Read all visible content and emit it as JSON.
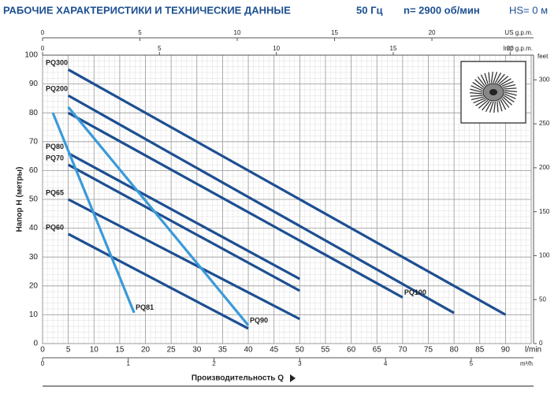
{
  "chart_data": {
    "type": "line",
    "title": "РАБОЧИЕ ХАРАКТЕРИСТИКИ И ТЕХНИЧЕСКИЕ ДАННЫЕ",
    "frequency": "50 Гц",
    "speed": "n= 2900 об/мин",
    "suction_head": "HS= 0 м",
    "x_label": "Производительность Q",
    "y_label": "Напор H (метры)",
    "x_unit": "l/min",
    "xlim": [
      0,
      95
    ],
    "xticks": [
      0,
      5,
      10,
      15,
      20,
      25,
      30,
      35,
      40,
      45,
      50,
      55,
      60,
      65,
      70,
      75,
      80,
      85,
      90
    ],
    "ylim": [
      0,
      100
    ],
    "yticks": [
      0,
      10,
      20,
      30,
      40,
      50,
      60,
      70,
      80,
      90,
      100
    ],
    "grid": true,
    "us_gpm_axis": {
      "label": "US g.p.m.",
      "lim": [
        0,
        25.1
      ],
      "ticks": [
        0,
        5,
        10,
        15,
        20
      ]
    },
    "imp_gpm_axis": {
      "label": "Imp g.p.m.",
      "lim": [
        0,
        20.9
      ],
      "ticks": [
        0,
        5,
        10,
        15,
        20
      ]
    },
    "m3h_axis": {
      "label": "m³/h",
      "lim": [
        0,
        5.7
      ],
      "ticks": [
        0,
        1,
        2,
        3,
        4,
        5
      ]
    },
    "feet_axis": {
      "label": "feet",
      "lim": [
        0,
        328.1
      ],
      "ticks": [
        0,
        50,
        100,
        150,
        200,
        250,
        300
      ]
    },
    "series": [
      {
        "name": "PQ300",
        "color": "#1d4f91",
        "x": [
          5,
          90
        ],
        "values": [
          95,
          10
        ]
      },
      {
        "name": "PQ200",
        "color": "#1d4f91",
        "x": [
          5,
          80
        ],
        "values": [
          86,
          10.6
        ]
      },
      {
        "name": "PQ100",
        "color": "#1d4f91",
        "x": [
          5,
          70
        ],
        "values": [
          80,
          16
        ]
      },
      {
        "name": "PQ80",
        "color": "#1d4f91",
        "x": [
          5,
          50
        ],
        "values": [
          66,
          22.4
        ]
      },
      {
        "name": "PQ70",
        "color": "#1d4f91",
        "x": [
          5,
          50
        ],
        "values": [
          62,
          18.3
        ]
      },
      {
        "name": "PQ65",
        "color": "#1d4f91",
        "x": [
          5,
          50
        ],
        "values": [
          50,
          8.5
        ]
      },
      {
        "name": "PQ60",
        "color": "#1d4f91",
        "x": [
          5,
          40
        ],
        "values": [
          38,
          5.2
        ]
      },
      {
        "name": "PQ81",
        "color": "#3a9ad9",
        "x": [
          2,
          17.8
        ],
        "values": [
          80,
          10.7
        ]
      },
      {
        "name": "PQ90",
        "color": "#3a9ad9",
        "x": [
          5,
          40
        ],
        "values": [
          82,
          6.3
        ]
      }
    ]
  }
}
